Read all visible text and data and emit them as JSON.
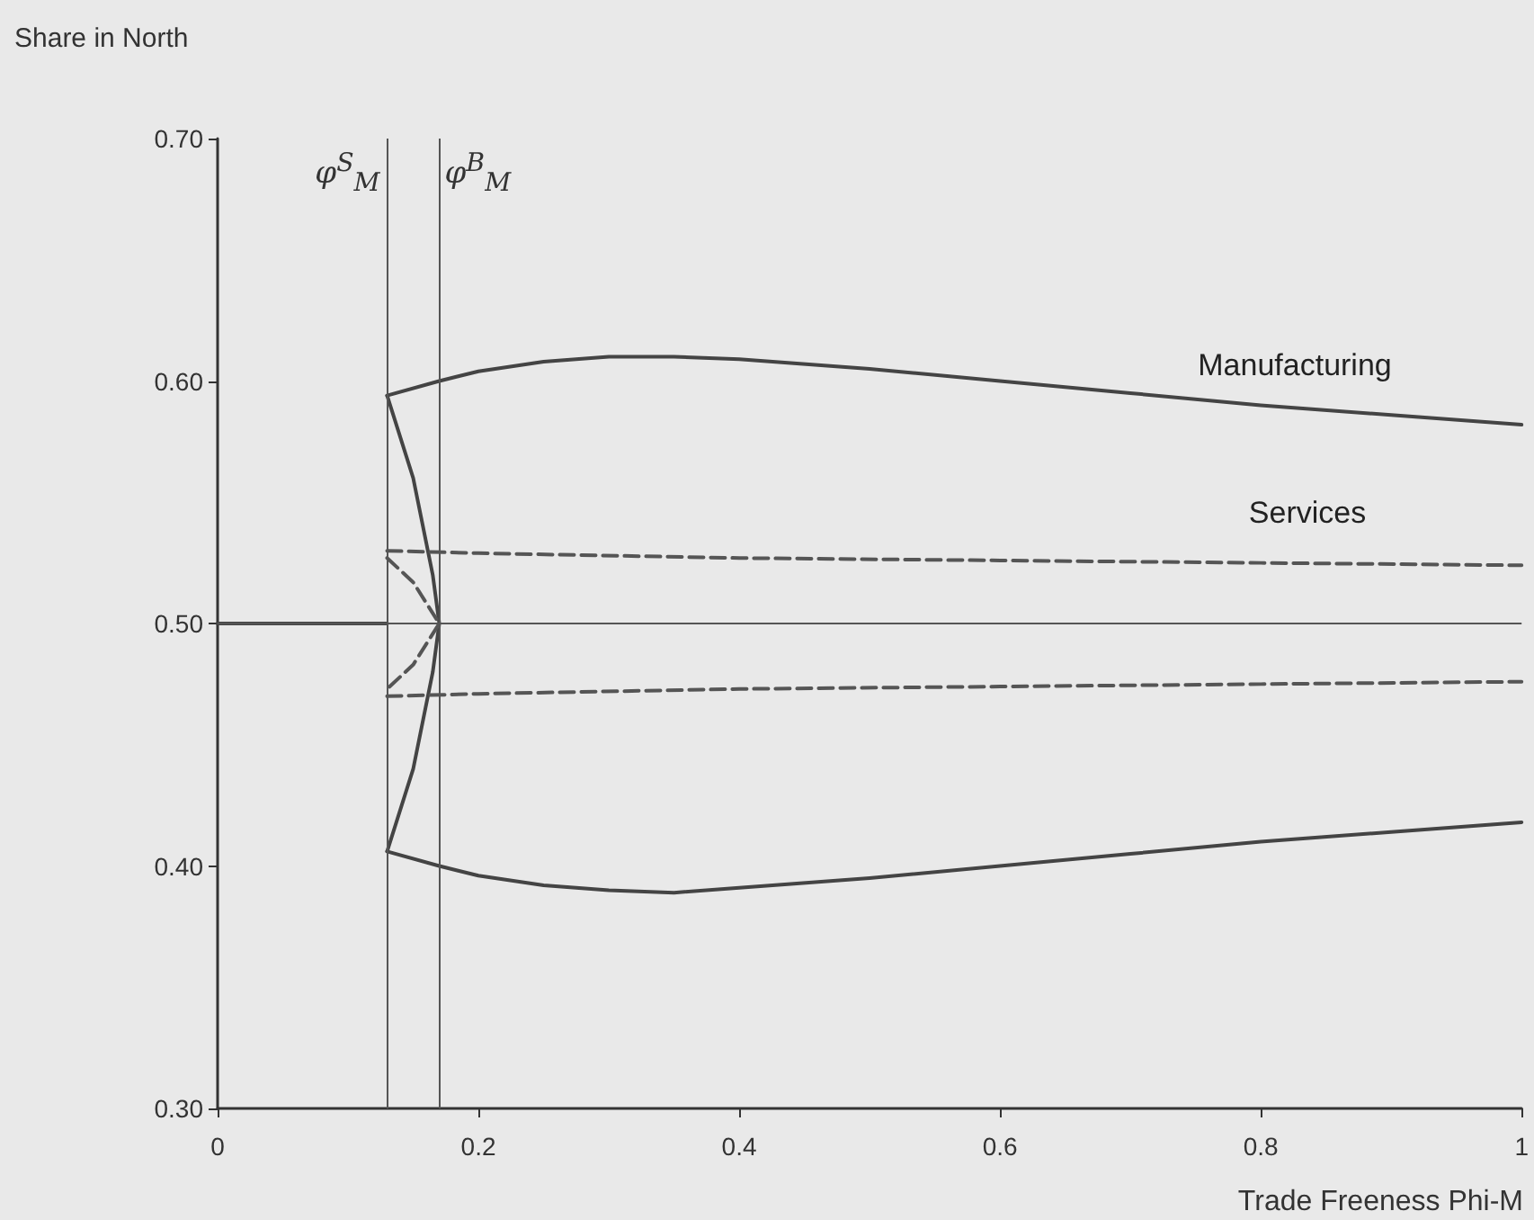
{
  "chart_data": {
    "type": "line",
    "xlabel": "Trade Freeness Phi-M",
    "ylabel": "Share in North",
    "xlim": [
      0,
      1
    ],
    "xticks": [
      0,
      0.2,
      0.4,
      0.6,
      0.8,
      1
    ],
    "ylim": [
      0.3,
      0.7
    ],
    "yticks": [
      {
        "value": 0.3,
        "label": "0.30"
      },
      {
        "value": 0.4,
        "label": "0.40"
      },
      {
        "value": 0.5,
        "label": "0.50"
      },
      {
        "value": 0.6,
        "label": "0.60"
      },
      {
        "value": 0.7,
        "label": "0.70"
      }
    ],
    "grid": false,
    "marker": "none",
    "series": [
      {
        "color": "#444444",
        "line_style": "solid",
        "x": [
          0.13,
          0.17,
          0.2,
          0.25,
          0.3,
          0.35,
          0.4,
          0.5,
          0.6,
          0.7,
          0.8,
          0.9,
          1.0
        ],
        "values": [
          0.594,
          0.6,
          0.604,
          0.608,
          0.61,
          0.61,
          0.609,
          0.605,
          0.6,
          0.595,
          0.59,
          0.586,
          0.582
        ]
      },
      {
        "color": "#444444",
        "line_style": "solid",
        "x": [
          0.13,
          0.17,
          0.2,
          0.25,
          0.3,
          0.35,
          0.4,
          0.5,
          0.6,
          0.7,
          0.8,
          0.9,
          1.0
        ],
        "values": [
          0.406,
          0.4,
          0.396,
          0.392,
          0.39,
          0.389,
          0.391,
          0.395,
          0.4,
          0.405,
          0.41,
          0.414,
          0.418
        ]
      },
      {
        "color": "#444444",
        "line_style": "solid",
        "x": [
          0.13,
          0.15,
          0.165,
          0.17,
          0.165,
          0.15,
          0.13
        ],
        "values": [
          0.594,
          0.56,
          0.52,
          0.5,
          0.48,
          0.44,
          0.406
        ]
      },
      {
        "color": "#444444",
        "line_style": "solid",
        "x": [
          0,
          0.13
        ],
        "values": [
          0.5,
          0.5
        ]
      },
      {
        "color": "#555555",
        "line_style": "dashed",
        "x": [
          0.13,
          0.2,
          0.4,
          0.6,
          0.8,
          1.0
        ],
        "values": [
          0.53,
          0.529,
          0.527,
          0.526,
          0.525,
          0.524
        ]
      },
      {
        "color": "#555555",
        "line_style": "dashed",
        "x": [
          0.13,
          0.2,
          0.4,
          0.6,
          0.8,
          1.0
        ],
        "values": [
          0.47,
          0.471,
          0.473,
          0.474,
          0.475,
          0.476
        ]
      },
      {
        "color": "#555555",
        "line_style": "dashed",
        "x": [
          0.13,
          0.15,
          0.17,
          0.15,
          0.13
        ],
        "values": [
          0.527,
          0.517,
          0.5,
          0.483,
          0.473
        ]
      }
    ],
    "ref_lines": [
      {
        "axis": "x",
        "value": 0.13,
        "label": "φ$^{S}$$_{M}$"
      },
      {
        "axis": "x",
        "value": 0.17,
        "label": "φ$^{B}$$_{M}$"
      },
      {
        "axis": "y",
        "value": 0.5,
        "label": null
      }
    ],
    "annotations": [
      "Manufacturing",
      "Services"
    ]
  }
}
